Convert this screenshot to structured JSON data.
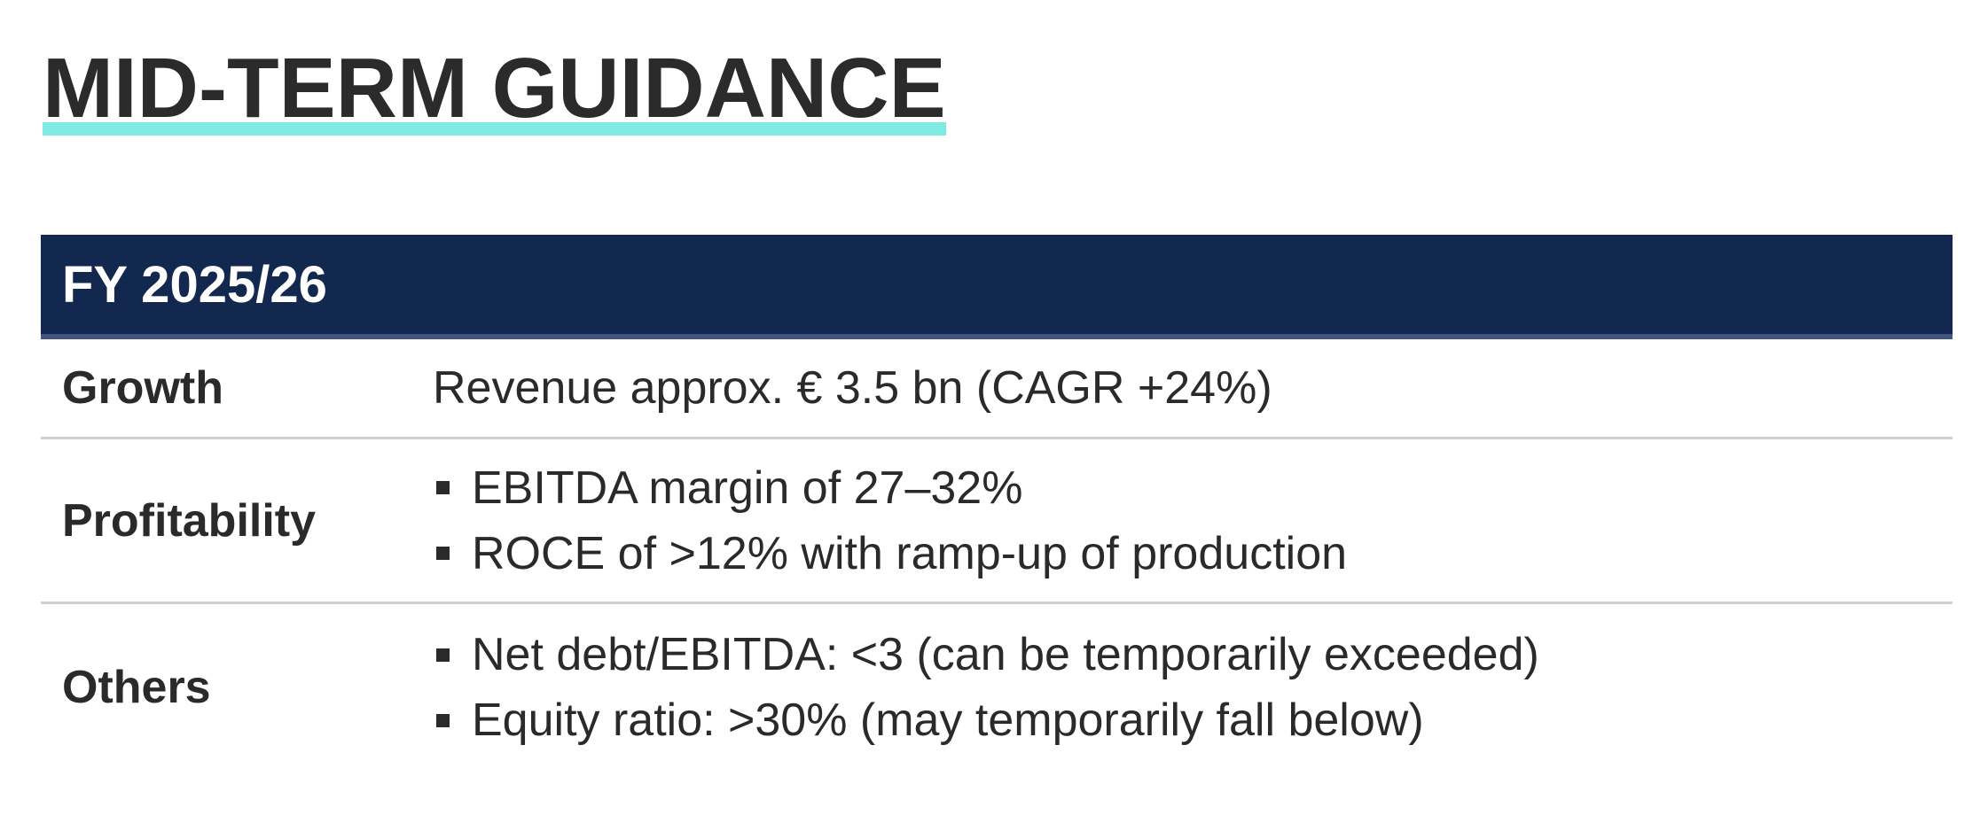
{
  "title": "MID-TERM GUIDANCE",
  "colors": {
    "title_underline": "#7eeae2",
    "header_background": "#13284f",
    "header_text": "#ffffff",
    "row_divider": "#cfcfcf"
  },
  "table": {
    "header": "FY 2025/26",
    "rows": [
      {
        "label": "Growth",
        "value": "Revenue approx. € 3.5 bn (CAGR +24%)"
      },
      {
        "label": "Profitability",
        "bullets": [
          "EBITDA margin of 27–32%",
          "ROCE of >12% with ramp-up of production"
        ]
      },
      {
        "label": "Others",
        "bullets": [
          "Net debt/EBITDA: <3 (can be temporarily exceeded)",
          "Equity ratio: >30% (may temporarily fall below)"
        ]
      }
    ]
  }
}
